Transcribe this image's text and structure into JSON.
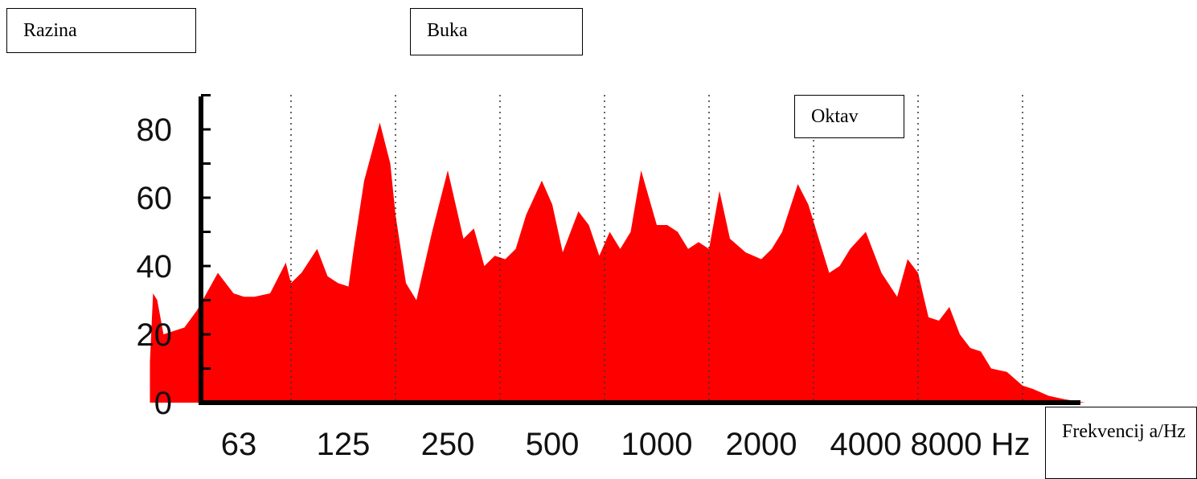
{
  "labels": {
    "razina": "Razina",
    "buka": "Buka",
    "oktav": "Oktav",
    "frekvencija": "Frekvencij a/Hz"
  },
  "chart_data": {
    "type": "area",
    "color": "#ff0000",
    "y_ticks": [
      "0",
      "20",
      "40",
      "60",
      "80"
    ],
    "ylim": [
      0,
      90
    ],
    "x_ticks": [
      "63",
      "125",
      "250",
      "500",
      "1000",
      "2000",
      "4000",
      "8000 Hz"
    ],
    "x_unit": "octave index (63 Hz = 0)",
    "xlim": [
      -0.85,
      8.2
    ],
    "octave_boundaries": [
      0.5,
      1.5,
      2.5,
      3.5,
      4.5,
      5.5,
      6.5,
      7.5
    ],
    "x": [
      -0.85,
      -0.82,
      -0.78,
      -0.72,
      -0.62,
      -0.52,
      -0.4,
      -0.2,
      -0.05,
      0.05,
      0.15,
      0.3,
      0.45,
      0.5,
      0.6,
      0.75,
      0.85,
      0.95,
      1.05,
      1.1,
      1.2,
      1.35,
      1.45,
      1.5,
      1.6,
      1.7,
      1.85,
      2.0,
      2.15,
      2.25,
      2.35,
      2.45,
      2.55,
      2.65,
      2.75,
      2.9,
      3.0,
      3.1,
      3.25,
      3.35,
      3.45,
      3.55,
      3.65,
      3.75,
      3.85,
      4.0,
      4.1,
      4.2,
      4.3,
      4.4,
      4.5,
      4.6,
      4.7,
      4.85,
      5.0,
      5.1,
      5.2,
      5.35,
      5.45,
      5.55,
      5.65,
      5.75,
      5.85,
      6.0,
      6.15,
      6.3,
      6.4,
      6.5,
      6.6,
      6.7,
      6.8,
      6.9,
      7.0,
      7.1,
      7.2,
      7.35,
      7.5,
      7.6,
      7.75,
      7.9,
      8.0,
      8.1,
      8.2
    ],
    "y": [
      12,
      32,
      30,
      20,
      21,
      22,
      27,
      38,
      32,
      31,
      31,
      32,
      41,
      35,
      38,
      45,
      37,
      35,
      34,
      45,
      65,
      82,
      70,
      55,
      35,
      30,
      50,
      68,
      48,
      51,
      40,
      43,
      42,
      45,
      55,
      65,
      58,
      44,
      56,
      52,
      43,
      50,
      45,
      50,
      68,
      52,
      52,
      50,
      45,
      47,
      45,
      62,
      48,
      44,
      42,
      45,
      50,
      64,
      58,
      48,
      38,
      40,
      45,
      50,
      38,
      31,
      42,
      38,
      25,
      24,
      28,
      20,
      16,
      15,
      10,
      9,
      5,
      4,
      2,
      1,
      0.5,
      0,
      0
    ]
  }
}
